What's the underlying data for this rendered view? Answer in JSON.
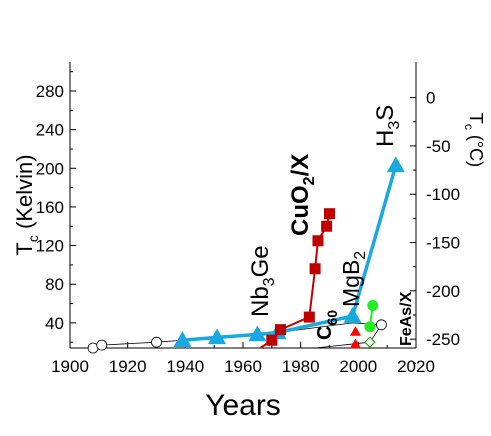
{
  "chart_data": {
    "type": "scatter",
    "xlabel": "Years",
    "ylabel_left_main": "T",
    "ylabel_left_sub": "c",
    "ylabel_left_unit": "(Kelvin)",
    "ylabel_right_main": "T",
    "ylabel_right_sub": "c",
    "ylabel_right_unit": "(°C)",
    "xlim": [
      1900,
      2020
    ],
    "ylim": [
      14,
      310
    ],
    "x_ticks": [
      1900,
      1920,
      1940,
      1960,
      1980,
      2000,
      2020
    ],
    "y_ticks_left": [
      40,
      80,
      120,
      160,
      200,
      240,
      280
    ],
    "y_ticks_right": [
      0,
      -50,
      -100,
      -150,
      -200,
      -250
    ],
    "grid": false,
    "series": [
      {
        "marker": "open-circle",
        "color": "#000000",
        "points": [
          [
            1908,
            14
          ],
          [
            1911,
            17
          ],
          [
            1930,
            20
          ]
        ]
      },
      {
        "marker": "open-circle",
        "color": "#000000",
        "points": [
          [
            2008,
            38
          ]
        ]
      },
      {
        "marker": "triangle",
        "color": "#1aa8e0",
        "points": [
          [
            1939,
            22
          ],
          [
            1951,
            25
          ],
          [
            1965,
            28
          ],
          [
            1972,
            30
          ],
          [
            1998,
            47
          ],
          [
            2013,
            203
          ]
        ]
      },
      {
        "marker": "square",
        "color": "#c00000",
        "points": [
          [
            1970,
            22
          ],
          [
            1973,
            33
          ],
          [
            1983,
            46
          ],
          [
            1985,
            96
          ],
          [
            1986,
            125
          ],
          [
            1989,
            140
          ],
          [
            1990,
            153
          ]
        ]
      },
      {
        "marker": "triangle",
        "color": "#ff0000",
        "points": [
          [
            1999,
            31
          ],
          [
            1999,
            18
          ]
        ]
      },
      {
        "marker": "filled-circle",
        "color": "#22ee22",
        "points": [
          [
            2005,
            58
          ],
          [
            2004,
            36
          ]
        ]
      },
      {
        "marker": "open-diamond",
        "color": "#009900",
        "points": [
          [
            2004,
            20
          ]
        ]
      }
    ],
    "annotations": [
      {
        "text": "Nb",
        "sub": "3",
        "text2": "Ge",
        "color": "#000000"
      },
      {
        "text": "CuO",
        "sub": "2",
        "text2": "/X",
        "color": "#c00000"
      },
      {
        "text": "C",
        "sub": "60",
        "text2": "",
        "color": "#99aa22"
      },
      {
        "text": "MgB",
        "sub": "2",
        "text2": "",
        "color": "#000000"
      },
      {
        "text": "H",
        "sub": "3",
        "text2": "S",
        "color": "#000000"
      },
      {
        "text": "FeAs/X",
        "sub": "",
        "text2": "",
        "color": "#000000"
      }
    ]
  }
}
